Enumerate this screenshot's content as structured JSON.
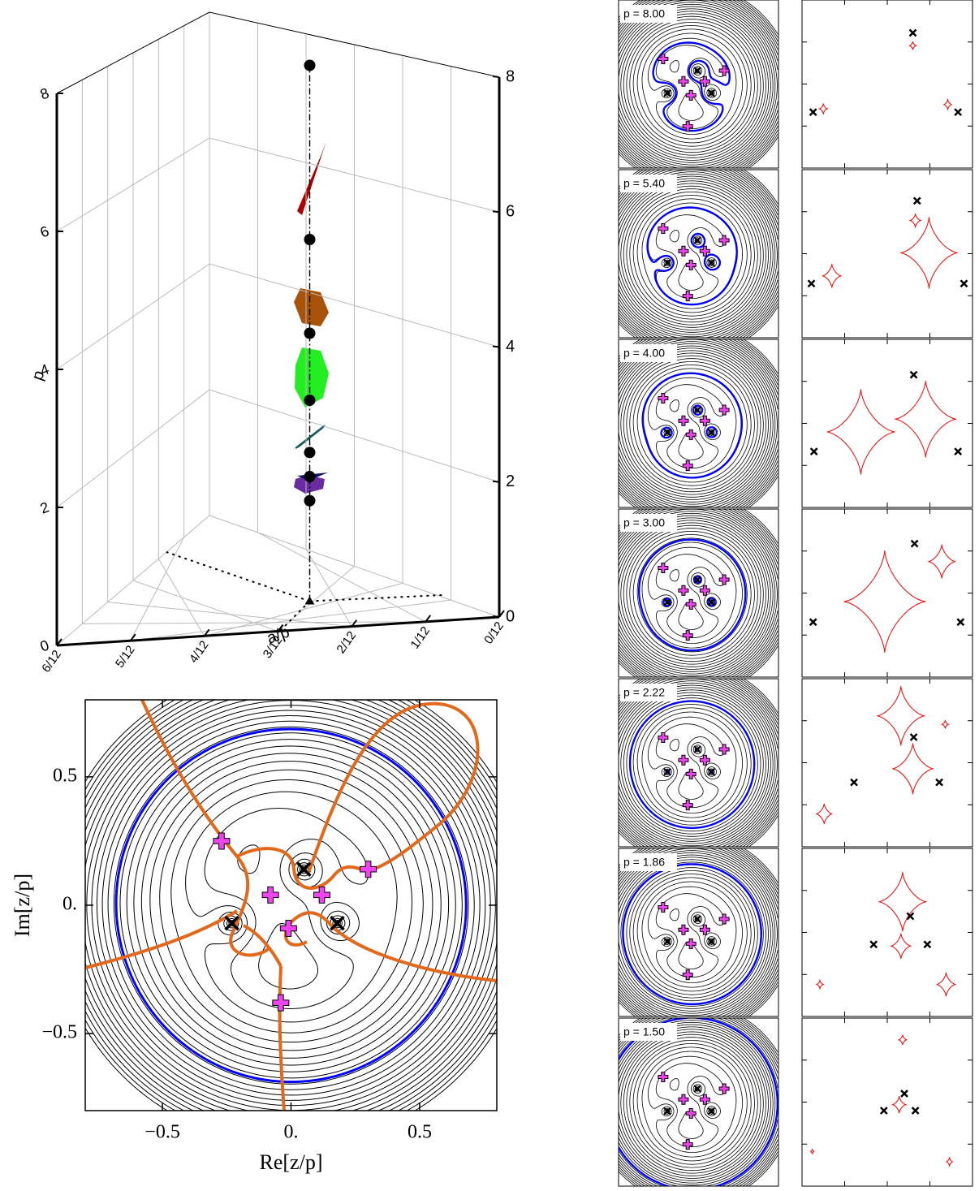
{
  "chart_data": [
    {
      "type": "scatter3d",
      "xlabel": "a/p",
      "ylabel": "p",
      "xlim": [
        0,
        0.5
      ],
      "ylim": [
        0,
        8
      ],
      "xticks": [
        {
          "value": 0,
          "label": "0/12"
        },
        {
          "value": 0.0833,
          "label": "1/12"
        },
        {
          "value": 0.1667,
          "label": "2/12"
        },
        {
          "value": 0.25,
          "label": "3/12"
        },
        {
          "value": 0.3333,
          "label": "4/12"
        },
        {
          "value": 0.4167,
          "label": "5/12"
        },
        {
          "value": 0.5,
          "label": "6/12"
        }
      ],
      "yticks": [
        0,
        2,
        4,
        6,
        8
      ],
      "series": [
        {
          "color": "#000000",
          "x": [
            0.25,
            0.25,
            0.25,
            0.25,
            0.25,
            0.25,
            0.25
          ],
          "values": [
            8,
            5.4,
            4,
            3,
            2.22,
            1.86,
            1.5
          ]
        }
      ]
    },
    {
      "type": "contour",
      "xlabel": "Re[z/p]",
      "ylabel": "Im[z/p]",
      "xlim": [
        -0.8,
        0.8
      ],
      "ylim": [
        -0.8,
        0.8
      ],
      "xticks": [
        {
          "value": -0.5,
          "label": "−0.5"
        },
        {
          "value": 0,
          "label": "0."
        },
        0.5
      ],
      "yticks": [
        {
          "value": -0.5,
          "label": "−0.5"
        },
        {
          "value": 0,
          "label": "0."
        },
        0.5
      ],
      "lenses": {
        "x": [
          -0.23,
          0.05,
          0.18
        ],
        "y": [
          -0.07,
          0.14,
          -0.07
        ]
      },
      "images": {
        "x": [
          -0.27,
          -0.08,
          0.12,
          0.3,
          -0.01,
          -0.04
        ],
        "y": [
          0.25,
          0.04,
          0.04,
          0.14,
          -0.09,
          -0.38
        ]
      }
    },
    {
      "type": "panels",
      "panels": [
        {
          "label": "p = 8.00",
          "lenses": {
            "x": [
              0.3,
              -0.87,
              0.83
            ],
            "y": [
              0.6,
              -0.33,
              -0.33
            ]
          },
          "caustics": [
            {
              "x": 0.3,
              "y": 0.45,
              "r": 0.05
            },
            {
              "x": -0.75,
              "y": -0.29,
              "r": 0.06
            },
            {
              "x": 0.71,
              "y": -0.24,
              "r": 0.06
            }
          ]
        },
        {
          "label": "p = 5.40",
          "lenses": {
            "x": [
              0.35,
              -0.89,
              0.9
            ],
            "y": [
              0.62,
              -0.35,
              -0.35
            ]
          },
          "caustics": [
            {
              "x": 0.49,
              "y": 0.01,
              "r": 0.42
            },
            {
              "x": 0.33,
              "y": 0.39,
              "r": 0.08
            },
            {
              "x": -0.65,
              "y": -0.26,
              "r": 0.14
            }
          ]
        },
        {
          "label": "p = 4.00",
          "lenses": {
            "x": [
              0.31,
              -0.86,
              0.83
            ],
            "y": [
              0.57,
              -0.33,
              -0.33
            ]
          },
          "caustics": [
            {
              "x": -0.31,
              "y": -0.1,
              "r": 0.5
            },
            {
              "x": 0.45,
              "y": 0.05,
              "r": 0.45
            }
          ]
        },
        {
          "label": "p = 3.00",
          "lenses": {
            "x": [
              0.32,
              -0.87,
              0.86
            ],
            "y": [
              0.58,
              -0.34,
              -0.34
            ]
          },
          "caustics": [
            {
              "x": -0.03,
              "y": -0.1,
              "r": 0.6
            },
            {
              "x": 0.64,
              "y": 0.37,
              "r": 0.2
            }
          ]
        },
        {
          "label": "p = 2.22",
          "lenses": {
            "x": [
              0.31,
              -0.39,
              0.61
            ],
            "y": [
              0.3,
              -0.23,
              -0.23
            ]
          },
          "caustics": [
            {
              "x": 0.16,
              "y": 0.55,
              "r": 0.35
            },
            {
              "x": 0.3,
              "y": -0.07,
              "r": 0.3
            },
            {
              "x": -0.74,
              "y": -0.6,
              "r": 0.12
            },
            {
              "x": 0.68,
              "y": 0.45,
              "r": 0.05
            }
          ]
        },
        {
          "label": "p = 1.86",
          "lenses": {
            "x": [
              0.27,
              -0.16,
              0.47
            ],
            "y": [
              0.19,
              -0.14,
              -0.14
            ]
          },
          "caustics": [
            {
              "x": 0.18,
              "y": 0.36,
              "r": 0.35
            },
            {
              "x": 0.16,
              "y": -0.16,
              "r": 0.15
            },
            {
              "x": 0.69,
              "y": -0.61,
              "r": 0.14
            },
            {
              "x": -0.79,
              "y": -0.61,
              "r": 0.05
            }
          ]
        },
        {
          "label": "p = 1.50",
          "lenses": {
            "x": [
              0.2,
              -0.04,
              0.33
            ],
            "y": [
              0.1,
              -0.1,
              -0.1
            ]
          },
          "caustics": [
            {
              "x": 0.18,
              "y": 0.73,
              "r": 0.06
            },
            {
              "x": 0.14,
              "y": -0.03,
              "r": 0.1
            },
            {
              "x": 0.73,
              "y": -0.7,
              "r": 0.05
            },
            {
              "x": -0.88,
              "y": -0.58,
              "r": 0.03
            }
          ]
        }
      ]
    }
  ]
}
